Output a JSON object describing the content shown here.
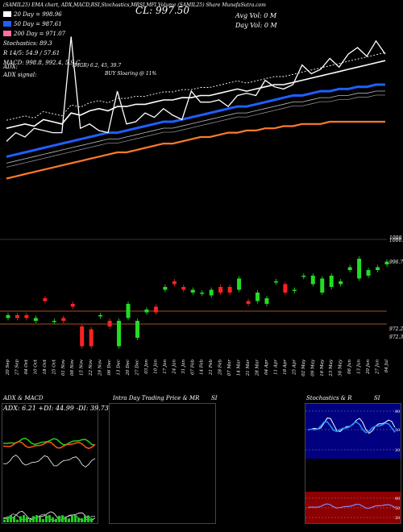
{
  "header": {
    "line": "(SAMIL25) EMA chart, ADX,MACD,RSI,Stochastics,MRSI,MFI,Volume (SAMIL25) Share MunafaSutra.com",
    "cl_label": "CL: 997.50",
    "avg_vol": "Avg Vol: 0  M",
    "day_vol": "Day Vol: 0   M"
  },
  "legend": [
    {
      "label": "20  Day = 998.96",
      "color": "#ffffff"
    },
    {
      "label": "50  Day = 987.61",
      "color": "#1f5fff"
    },
    {
      "label": "200  Day = 971.07",
      "color": "#ff6fa0"
    },
    {
      "label": "Stochastics: 89.3",
      "color": null
    },
    {
      "label": "R  14/5: 54.9 / 57.61",
      "color": null
    },
    {
      "label": "MACD: 998.8,  992.4,  5.9  C",
      "color": null
    }
  ],
  "indicators": {
    "adx_label": "ADX:",
    "adx_signal": "ADX  signal:",
    "mrsi": "(MGR) 6.2,  45,  39.7",
    "buy_signal": "BUY Sloaring @ 11%"
  },
  "price_axis_labels": [
    "1008",
    "1000.98",
    "996.75",
    "972.2",
    "972.38"
  ],
  "dates": [
    "20 Sep",
    "27 Sep",
    "04 Oct",
    "10 Oct",
    "18 Oct",
    "25 Oct",
    "01 Nov",
    "08 Nov",
    "15 Nov",
    "22 Nov",
    "29 Nov",
    "06 Dec",
    "13 Dec",
    "20 Dec",
    "27 Dec",
    "03 Jan",
    "10 Jan",
    "17 Jan",
    "24 Jan",
    "31 Jan",
    "07 Feb",
    "14 Feb",
    "21 Feb",
    "28 Feb",
    "07 Mar",
    "14 Mar",
    "21 Mar",
    "28 Mar",
    "04 Apr",
    "11 Apr",
    "18 Apr",
    "25 Apr",
    "02 May",
    "09 May",
    "16 May",
    "23 May",
    "30 May",
    "06 Jun",
    "13 Jun",
    "20 Jun",
    "27 Jun",
    "04 Jul"
  ],
  "panels": {
    "adx_title": "ADX: 6.21  +DI: 44.99  -DI: 39.73",
    "adx_macd_label": "ADX  & MACD",
    "intraday_label": "Intra  Day Trading Price  & MR",
    "intraday_si": "SI",
    "stoch_label": "Stochastics  & R",
    "stoch_si": "SI",
    "stoch_ticks": [
      "80",
      "50",
      "20"
    ],
    "rsi_ticks": [
      "80",
      "50",
      "20"
    ]
  },
  "chart_data": {
    "type": "line",
    "series": [
      {
        "name": "20  Day",
        "values": [
          968,
          969,
          970,
          969,
          972,
          971,
          970,
          975,
          974,
          976,
          977,
          976,
          978,
          978,
          979,
          979,
          980,
          981,
          981,
          982,
          982,
          983,
          983,
          984,
          985,
          986,
          985,
          986,
          987,
          988,
          988,
          989,
          990,
          991,
          992,
          993,
          994,
          995,
          996,
          997,
          998,
          999
        ]
      },
      {
        "name": "50  Day",
        "values": [
          955,
          956,
          957,
          958,
          959,
          960,
          961,
          962,
          963,
          964,
          965,
          966,
          966,
          967,
          968,
          969,
          970,
          971,
          971,
          972,
          973,
          974,
          975,
          976,
          977,
          978,
          978,
          979,
          980,
          981,
          982,
          983,
          983,
          984,
          985,
          985,
          986,
          986,
          987,
          987,
          988,
          988
        ]
      },
      {
        "name": "200  Day",
        "values": [
          945,
          946,
          947,
          948,
          949,
          950,
          951,
          952,
          953,
          954,
          955,
          956,
          957,
          957,
          958,
          959,
          960,
          961,
          961,
          962,
          963,
          964,
          964,
          965,
          966,
          966,
          967,
          967,
          968,
          968,
          969,
          969,
          970,
          970,
          970,
          971,
          971,
          971,
          971,
          971,
          971,
          971
        ]
      }
    ],
    "price": [
      962,
      966,
      964,
      968,
      967,
      966,
      966,
      1010,
      968,
      970,
      967,
      966,
      985,
      970,
      971,
      975,
      973,
      977,
      974,
      972,
      985,
      980,
      980,
      981,
      978,
      983,
      984,
      983,
      990,
      987,
      986,
      988,
      997,
      993,
      995,
      1000,
      996,
      1002,
      1005,
      1001,
      1008,
      1002
    ],
    "candles": [
      {
        "o": 973,
        "c": 974
      },
      {
        "o": 974,
        "c": 973
      },
      {
        "o": 974,
        "c": 973
      },
      {
        "o": 972,
        "c": 973
      },
      {
        "o": 980,
        "c": 979
      },
      {
        "o": 972,
        "c": 972
      },
      {
        "o": 973,
        "c": 972
      },
      {
        "o": 978,
        "c": 977
      },
      {
        "o": 970,
        "c": 963
      },
      {
        "o": 969,
        "c": 963
      },
      {
        "o": 974,
        "c": 974
      },
      {
        "o": 972,
        "c": 970
      },
      {
        "o": 963,
        "c": 972
      },
      {
        "o": 973,
        "c": 978
      },
      {
        "o": 966,
        "c": 972
      },
      {
        "o": 975,
        "c": 976
      },
      {
        "o": 977,
        "c": 975
      },
      {
        "o": 983,
        "c": 984
      },
      {
        "o": 986,
        "c": 985
      },
      {
        "o": 984,
        "c": 983
      },
      {
        "o": 982,
        "c": 983
      },
      {
        "o": 982,
        "c": 982
      },
      {
        "o": 981,
        "c": 983
      },
      {
        "o": 984,
        "c": 982
      },
      {
        "o": 984,
        "c": 982
      },
      {
        "o": 983,
        "c": 987
      },
      {
        "o": 979,
        "c": 978
      },
      {
        "o": 979,
        "c": 982
      },
      {
        "o": 978,
        "c": 980
      },
      {
        "o": 986,
        "c": 986
      },
      {
        "o": 985,
        "c": 982
      },
      {
        "o": 983,
        "c": 983
      },
      {
        "o": 988,
        "c": 988
      },
      {
        "o": 985,
        "c": 988
      },
      {
        "o": 982,
        "c": 987
      },
      {
        "o": 984,
        "c": 988
      },
      {
        "o": 985,
        "c": 986
      },
      {
        "o": 990,
        "c": 991
      },
      {
        "o": 987,
        "c": 994
      },
      {
        "o": 988,
        "c": 990
      },
      {
        "o": 990,
        "c": 991
      },
      {
        "o": 992,
        "c": 993
      }
    ],
    "ylim": [
      940,
      1012
    ],
    "xlabel": "",
    "ylabel": ""
  }
}
